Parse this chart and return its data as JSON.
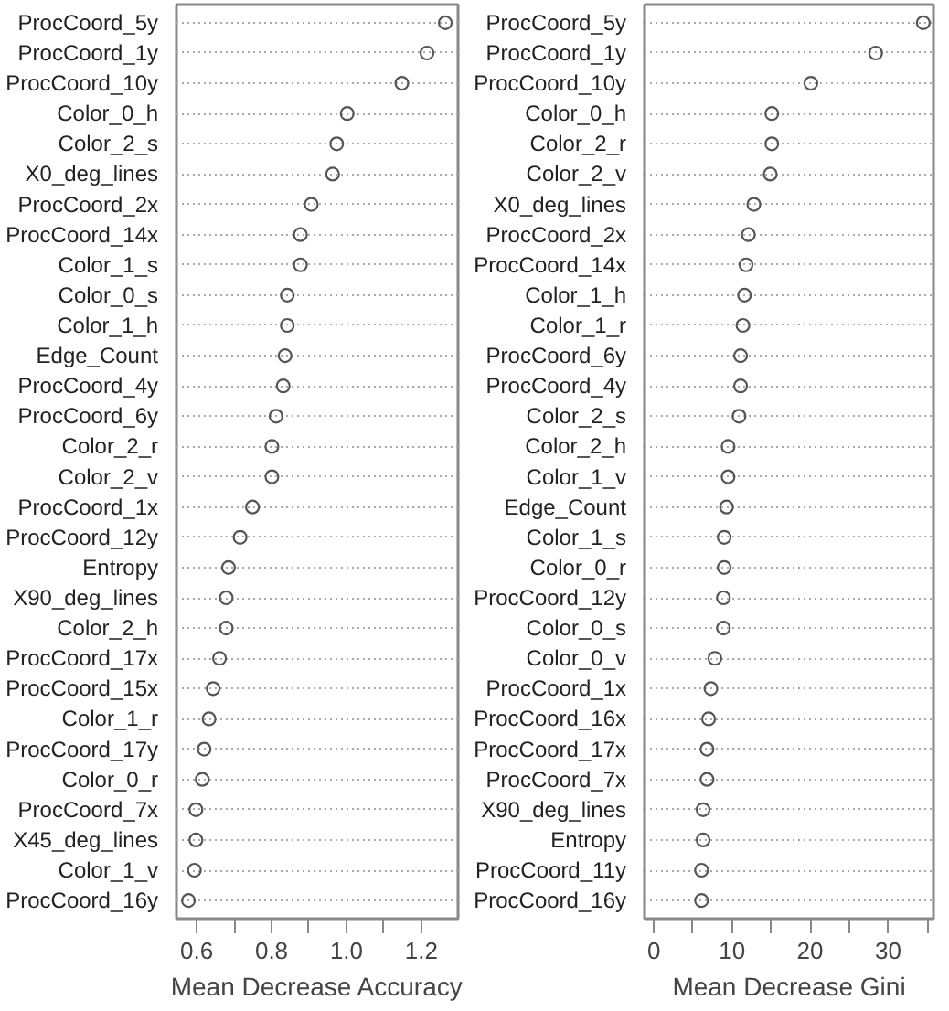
{
  "chart_data": [
    {
      "type": "scatter",
      "orientation": "horizontal",
      "xlabel": "Mean Decrease Accuracy",
      "categories": [
        "ProcCoord_5y",
        "ProcCoord_1y",
        "ProcCoord_10y",
        "Color_0_h",
        "Color_2_s",
        "X0_deg_lines",
        "ProcCoord_2x",
        "ProcCoord_14x",
        "Color_1_s",
        "Color_0_s",
        "Color_1_h",
        "Edge_Count",
        "ProcCoord_4y",
        "ProcCoord_6y",
        "Color_2_r",
        "Color_2_v",
        "ProcCoord_1x",
        "ProcCoord_12y",
        "Entropy",
        "X90_deg_lines",
        "Color_2_h",
        "ProcCoord_17x",
        "ProcCoord_15x",
        "Color_1_r",
        "ProcCoord_17y",
        "Color_0_r",
        "ProcCoord_7x",
        "X45_deg_lines",
        "Color_1_v",
        "ProcCoord_16y"
      ],
      "values": [
        1.264,
        1.215,
        1.148,
        1.002,
        0.974,
        0.963,
        0.906,
        0.877,
        0.877,
        0.842,
        0.842,
        0.836,
        0.831,
        0.812,
        0.801,
        0.801,
        0.749,
        0.716,
        0.685,
        0.679,
        0.679,
        0.661,
        0.644,
        0.633,
        0.62,
        0.615,
        0.598,
        0.598,
        0.594,
        0.578
      ],
      "color": "#555555",
      "marker": "circle",
      "grid": "y",
      "xlim": [
        0.546,
        1.298
      ],
      "xticks": [
        0.6,
        {
          "value": 0.7,
          "label": null
        },
        0.8,
        {
          "value": 0.9,
          "label": null
        },
        {
          "value": 1.0,
          "label": "1.0"
        },
        {
          "value": 1.1,
          "label": null
        },
        1.2
      ]
    },
    {
      "type": "scatter",
      "orientation": "horizontal",
      "xlabel": "Mean Decrease Gini",
      "categories": [
        "ProcCoord_5y",
        "ProcCoord_1y",
        "ProcCoord_10y",
        "Color_0_h",
        "Color_2_r",
        "Color_2_v",
        "X0_deg_lines",
        "ProcCoord_2x",
        "ProcCoord_14x",
        "Color_1_h",
        "Color_1_r",
        "ProcCoord_6y",
        "ProcCoord_4y",
        "Color_2_s",
        "Color_2_h",
        "Color_1_v",
        "Edge_Count",
        "Color_1_s",
        "Color_0_r",
        "ProcCoord_12y",
        "Color_0_s",
        "Color_0_v",
        "ProcCoord_1x",
        "ProcCoord_16x",
        "ProcCoord_17x",
        "ProcCoord_7x",
        "X90_deg_lines",
        "Entropy",
        "ProcCoord_11y",
        "ProcCoord_16y"
      ],
      "values": [
        34.5,
        28.4,
        20.1,
        15.1,
        15.1,
        14.9,
        12.8,
        12.1,
        11.8,
        11.6,
        11.4,
        11.1,
        11.1,
        10.9,
        9.5,
        9.5,
        9.3,
        9.0,
        9.0,
        8.9,
        8.9,
        7.8,
        7.3,
        7.0,
        6.8,
        6.8,
        6.3,
        6.3,
        6.1,
        6.1
      ],
      "color": "#555555",
      "marker": "circle",
      "grid": "y",
      "xlim": [
        -1.2,
        35.8
      ],
      "xticks": [
        0,
        {
          "value": 5,
          "label": null
        },
        10,
        {
          "value": 15,
          "label": null
        },
        20,
        {
          "value": 25,
          "label": null
        },
        30,
        {
          "value": 35,
          "label": null
        }
      ]
    }
  ]
}
